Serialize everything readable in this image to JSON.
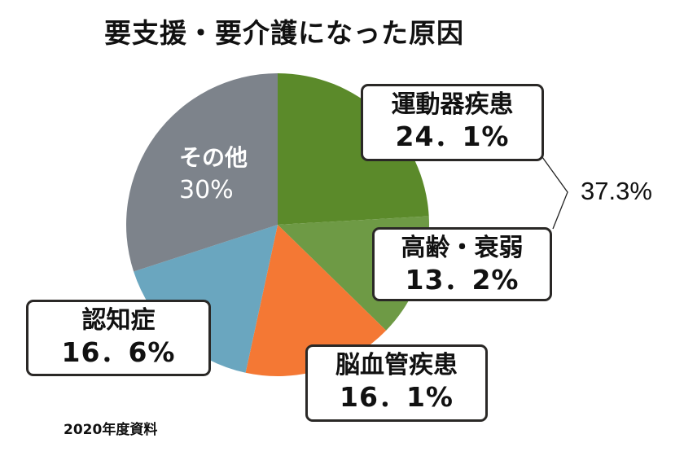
{
  "title": "要支援・要介護になった原因",
  "source": "2020年度資料",
  "bracket_total": "37.3%",
  "colors": {
    "musculoskeletal": "#5b8a2a",
    "frailty": "#6e9a45",
    "cerebrovascular": "#f47834",
    "dementia": "#6aa6bf",
    "other": "#7d838b",
    "box_border": "#2a2826"
  },
  "labels": {
    "musculoskeletal": {
      "name": "運動器疾患",
      "value": "24．1%"
    },
    "frailty": {
      "name": "高齢・衰弱",
      "value": "13．2%"
    },
    "cerebrovascular": {
      "name": "脳血管疾患",
      "value": "16．1%"
    },
    "dementia": {
      "name": "認知症",
      "value": "16．6%"
    },
    "other": {
      "name": "その他",
      "value": "30%"
    }
  },
  "chart_data": {
    "type": "pie",
    "title": "要支援・要介護になった原因",
    "categories": [
      "運動器疾患",
      "高齢・衰弱",
      "脳血管疾患",
      "認知症",
      "その他"
    ],
    "values": [
      24.1,
      13.2,
      16.1,
      16.6,
      30.0
    ],
    "unit": "%",
    "start_angle": "12 o'clock, clockwise",
    "annotations": [
      {
        "text": "37.3%",
        "spans": [
          "運動器疾患",
          "高齢・衰弱"
        ],
        "type": "bracket"
      }
    ],
    "footnote": "2020年度資料",
    "legend": "none (direct labels)"
  }
}
